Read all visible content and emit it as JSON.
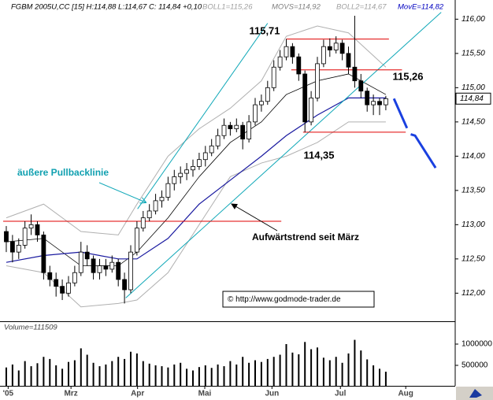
{
  "chart_data": {
    "type": "candlestick",
    "header": [
      {
        "text": "FGBM 2005U,CC [15] H:114,88 L:114,67 C: 114,84 +0,10",
        "color": "#000000"
      },
      {
        "text": "BOLL1=115,26",
        "color": "#a0a0a0"
      },
      {
        "text": "MOVS=114,92",
        "color": "#808080"
      },
      {
        "text": "BOLL2=114,67",
        "color": "#a0a0a0"
      },
      {
        "text": "MovE=114,82",
        "color": "#0000c0"
      }
    ],
    "xlim": [
      -1.01,
      72.15
    ],
    "ylim": [
      111.59,
      116.28
    ],
    "yticks": [
      {
        "value": 112,
        "label": "112,00"
      },
      {
        "value": 112.5,
        "label": "112,50"
      },
      {
        "value": 113,
        "label": "113,00"
      },
      {
        "value": 113.5,
        "label": "113,50"
      },
      {
        "value": 114,
        "label": "114,00"
      },
      {
        "value": 114.5,
        "label": "114,50"
      },
      {
        "value": 115,
        "label": "115,00"
      },
      {
        "value": 115.5,
        "label": "115,50"
      },
      {
        "value": 116,
        "label": "116,00"
      }
    ],
    "xticks": [
      {
        "value": 0.3,
        "label": "'05"
      },
      {
        "value": 10.4,
        "label": "Mrz"
      },
      {
        "value": 21.1,
        "label": "Apr"
      },
      {
        "value": 31.9,
        "label": "Mai"
      },
      {
        "value": 42.7,
        "label": "Jun"
      },
      {
        "value": 53.7,
        "label": "Jul"
      },
      {
        "value": 64.2,
        "label": "Aug"
      }
    ],
    "up_color": "#ffffff",
    "down_color": "#000000",
    "candles": [
      [
        112.9,
        112.98,
        112.6,
        112.75
      ],
      [
        112.75,
        112.85,
        112.45,
        112.6
      ],
      [
        112.6,
        112.8,
        112.5,
        112.7
      ],
      [
        112.7,
        113.05,
        112.65,
        112.95
      ],
      [
        112.95,
        113.15,
        112.85,
        113.0
      ],
      [
        113.0,
        113.05,
        112.75,
        112.85
      ],
      [
        112.85,
        112.9,
        112.2,
        112.3
      ],
      [
        112.3,
        112.4,
        112.1,
        112.2
      ],
      [
        112.2,
        112.3,
        111.95,
        112.1
      ],
      [
        112.1,
        112.2,
        111.9,
        112.0
      ],
      [
        112.0,
        112.25,
        111.95,
        112.15
      ],
      [
        112.15,
        112.4,
        112.1,
        112.3
      ],
      [
        112.3,
        112.75,
        112.25,
        112.6
      ],
      [
        112.6,
        112.7,
        112.4,
        112.5
      ],
      [
        112.5,
        112.55,
        112.2,
        112.3
      ],
      [
        112.3,
        112.5,
        112.2,
        112.4
      ],
      [
        112.4,
        112.5,
        112.25,
        112.35
      ],
      [
        112.35,
        112.55,
        112.3,
        112.45
      ],
      [
        112.45,
        112.5,
        112.1,
        112.2
      ],
      [
        112.2,
        112.3,
        111.85,
        112.05
      ],
      [
        112.05,
        112.7,
        112.0,
        112.6
      ],
      [
        112.6,
        113.05,
        112.55,
        112.95
      ],
      [
        112.95,
        113.2,
        112.9,
        113.1
      ],
      [
        113.1,
        113.3,
        113.05,
        113.2
      ],
      [
        113.2,
        113.45,
        113.15,
        113.35
      ],
      [
        113.35,
        113.5,
        113.25,
        113.4
      ],
      [
        113.4,
        113.7,
        113.35,
        113.6
      ],
      [
        113.6,
        113.8,
        113.5,
        113.7
      ],
      [
        113.7,
        113.85,
        113.6,
        113.75
      ],
      [
        113.75,
        113.9,
        113.65,
        113.8
      ],
      [
        113.8,
        113.95,
        113.7,
        113.85
      ],
      [
        113.85,
        114.05,
        113.8,
        113.95
      ],
      [
        113.95,
        114.15,
        113.85,
        114.05
      ],
      [
        114.05,
        114.25,
        114.0,
        114.15
      ],
      [
        114.15,
        114.4,
        114.1,
        114.3
      ],
      [
        114.3,
        114.55,
        114.25,
        114.45
      ],
      [
        114.45,
        114.5,
        114.3,
        114.4
      ],
      [
        114.4,
        114.55,
        114.35,
        114.45
      ],
      [
        114.45,
        114.5,
        114.1,
        114.25
      ],
      [
        114.25,
        114.6,
        114.2,
        114.5
      ],
      [
        114.5,
        114.85,
        114.45,
        114.75
      ],
      [
        114.75,
        114.9,
        114.65,
        114.8
      ],
      [
        114.8,
        115.1,
        114.75,
        115.0
      ],
      [
        115.0,
        115.4,
        114.95,
        115.3
      ],
      [
        115.3,
        115.55,
        115.25,
        115.45
      ],
      [
        115.45,
        115.71,
        115.4,
        115.6
      ],
      [
        115.6,
        115.65,
        115.35,
        115.45
      ],
      [
        115.45,
        115.5,
        115.1,
        115.2
      ],
      [
        115.2,
        115.25,
        114.35,
        114.5
      ],
      [
        114.5,
        114.95,
        114.45,
        114.85
      ],
      [
        114.85,
        115.45,
        114.8,
        115.35
      ],
      [
        115.35,
        115.7,
        115.3,
        115.6
      ],
      [
        115.6,
        115.72,
        115.45,
        115.55
      ],
      [
        115.55,
        115.75,
        115.5,
        115.65
      ],
      [
        115.65,
        115.7,
        115.4,
        115.5
      ],
      [
        115.5,
        115.6,
        115.2,
        115.3
      ],
      [
        115.3,
        116.05,
        115.0,
        115.1
      ],
      [
        115.1,
        115.2,
        114.85,
        114.95
      ],
      [
        114.95,
        115.0,
        114.65,
        114.75
      ],
      [
        114.75,
        114.9,
        114.6,
        114.8
      ],
      [
        114.8,
        114.85,
        114.6,
        114.75
      ],
      [
        114.75,
        114.88,
        114.67,
        114.84
      ]
    ],
    "last_label": "114,84",
    "lines": [
      {
        "x": [
          0,
          6,
          12,
          18,
          21,
          26,
          31,
          36,
          41,
          45,
          50,
          55,
          61
        ],
        "values": [
          113.1,
          113.3,
          112.9,
          112.85,
          113.3,
          114.0,
          114.4,
          114.7,
          115.1,
          115.75,
          115.9,
          115.8,
          115.3
        ],
        "color": "#b0b0b0",
        "width": 1
      },
      {
        "x": [
          0,
          6,
          12,
          18,
          21,
          26,
          31,
          36,
          41,
          45,
          50,
          55,
          61
        ],
        "values": [
          112.4,
          112.3,
          111.8,
          111.85,
          111.9,
          112.3,
          113.0,
          113.7,
          113.9,
          114.0,
          114.2,
          114.5,
          114.5
        ],
        "color": "#b0b0b0",
        "width": 1
      },
      {
        "x": [
          0,
          6,
          12,
          18,
          21,
          26,
          31,
          36,
          41,
          45,
          50,
          55,
          61
        ],
        "values": [
          112.75,
          112.8,
          112.4,
          112.4,
          112.6,
          113.1,
          113.7,
          114.2,
          114.5,
          114.9,
          115.1,
          115.2,
          114.9
        ],
        "color": "#000000",
        "width": 0.8
      },
      {
        "x": [
          0,
          6,
          12,
          18,
          21,
          26,
          31,
          36,
          41,
          45,
          50,
          55,
          61
        ],
        "values": [
          112.45,
          112.55,
          112.6,
          112.5,
          112.5,
          112.8,
          113.3,
          113.65,
          114.0,
          114.3,
          114.6,
          114.85,
          114.85
        ],
        "color": "#1a1aa0",
        "width": 1.2
      },
      {
        "x": [
          21.1,
          42.0
        ],
        "values": [
          113.23,
          115.94
        ],
        "color": "#10a8b8",
        "width": 1
      },
      {
        "x": [
          19.2,
          69.9
        ],
        "values": [
          111.93,
          116.1
        ],
        "color": "#10a8b8",
        "width": 1
      },
      {
        "x": [
          62.3,
          64.4
        ],
        "values": [
          114.84,
          114.41
        ],
        "color": "#1a40e0",
        "width": 3
      },
      {
        "x": [
          65.0,
          65.7,
          69.0
        ],
        "values": [
          114.32,
          114.3,
          113.83
        ],
        "color": "#1a40e0",
        "width": 3
      }
    ],
    "hlines": [
      {
        "value": 113.05,
        "x": [
          -0.5,
          44.2
        ],
        "color": "#e00000"
      },
      {
        "value": 115.71,
        "label": "115,71",
        "x": [
          45.0,
          61.5
        ],
        "color": "#e00000"
      },
      {
        "value": 115.26,
        "label": "115,26",
        "x": [
          45.8,
          63.6
        ],
        "color": "#e00000"
      },
      {
        "value": 114.35,
        "label": "114,35",
        "x": [
          47.7,
          64.2
        ],
        "color": "#e00000"
      }
    ],
    "annotations": [
      "äußere Pullbacklinie",
      "Aufwärtstrend seit März"
    ],
    "credit": "© http://www.godmode-trader.de",
    "volume_label": "Volume=111509",
    "vlim": [
      0,
      1500000
    ],
    "vticks": [
      500000,
      1000000
    ],
    "volume_color": "#000000",
    "volume": [
      450000,
      520000,
      380000,
      600000,
      480000,
      550000,
      700000,
      650000,
      500000,
      420000,
      580000,
      620000,
      900000,
      750000,
      560000,
      480000,
      520000,
      600000,
      700000,
      650000,
      820000,
      780000,
      600000,
      540000,
      500000,
      480000,
      450000,
      520000,
      560000,
      420000,
      380000,
      460000,
      500000,
      440000,
      520000,
      480000,
      600000,
      520000,
      700000,
      560000,
      620000,
      580000,
      650000,
      700000,
      750000,
      1000000,
      800000,
      760000,
      1050000,
      880000,
      920000,
      680000,
      620000,
      700000,
      560000,
      780000,
      1100000,
      850000,
      640000,
      500000,
      420000,
      350000
    ]
  }
}
